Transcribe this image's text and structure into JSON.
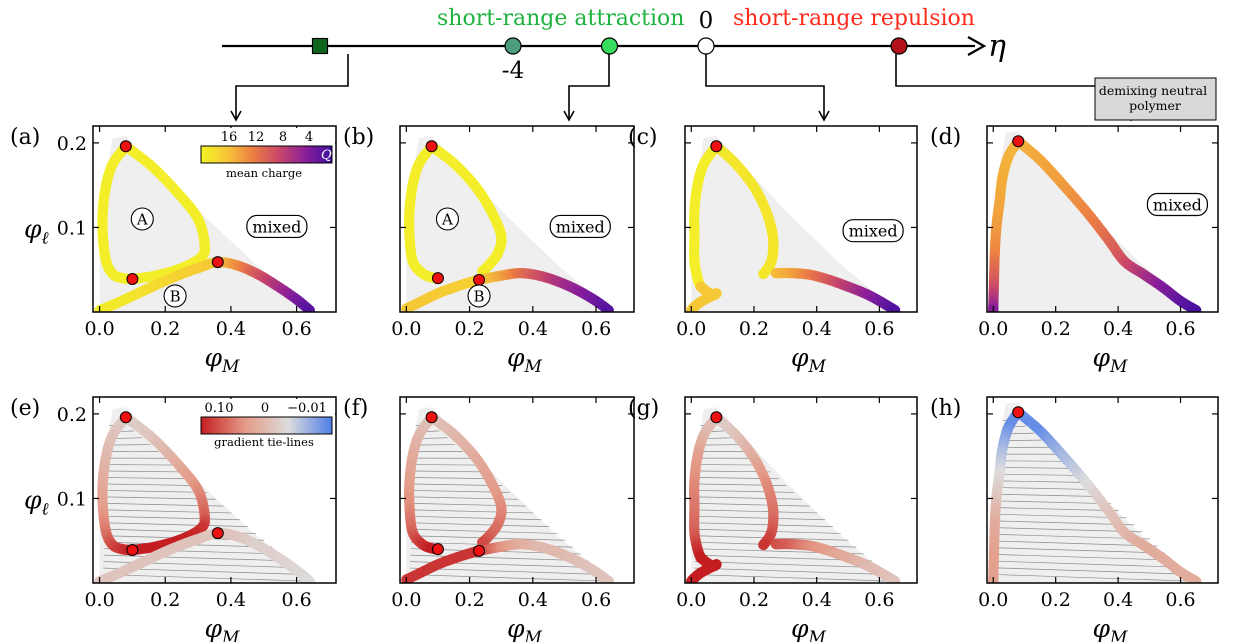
{
  "axis_arrow": {
    "symbol": "η",
    "attraction_label": "short-range attraction",
    "repulsion_label": "short-range repulsion",
    "attraction_color": "#1db33e",
    "repulsion_color": "#ff2a1a",
    "tick_minus4": "-4",
    "tick_zero": "0",
    "markers": [
      {
        "eta": -8,
        "shape": "square",
        "color": "#11661f"
      },
      {
        "eta": -4,
        "shape": "circle",
        "color": "#4b9e7c"
      },
      {
        "eta": -2,
        "shape": "circle",
        "color": "#35dc5e"
      },
      {
        "eta": 0,
        "shape": "circle",
        "color": "#ffffff"
      },
      {
        "eta": 4,
        "shape": "circle",
        "color": "#b3121b"
      }
    ]
  },
  "demixing_box": "demixing neutral\npolymer",
  "panel_letters": [
    "(a)",
    "(b)",
    "(c)",
    "(d)",
    "(e)",
    "(f)",
    "(g)",
    "(h)"
  ],
  "region_labels": {
    "A": "A",
    "B": "B",
    "mixed": "mixed"
  },
  "colorbar_charge": {
    "ticks": [
      "16",
      "12",
      "8",
      "4"
    ],
    "symbol": "Q",
    "label": "mean charge",
    "colors": [
      "#f2f526",
      "#f7c537",
      "#eb7d44",
      "#c8466a",
      "#8a1e9b",
      "#3c0fa0"
    ]
  },
  "colorbar_gradient": {
    "ticks": [
      "0.10",
      "0",
      "−0.01"
    ],
    "label": "gradient tie-lines",
    "colors": [
      "#c41e22",
      "#e49a86",
      "#dcdcdc",
      "#4f7ee8"
    ]
  },
  "chart_data": [
    {
      "panel": "a",
      "type": "scatter",
      "eta": -8,
      "coloring": "mean charge",
      "xlabel": "φ_M",
      "ylabel": "φ_ℓ",
      "xticks": [
        0.0,
        0.2,
        0.4,
        0.6
      ],
      "yticks": [
        0.1,
        0.2
      ],
      "xlim": [
        -0.02,
        0.72
      ],
      "ylim": [
        0.0,
        0.22
      ],
      "critical_points": [
        [
          0.08,
          0.196
        ],
        [
          0.1,
          0.039
        ],
        [
          0.36,
          0.059
        ]
      ],
      "branches": [
        {
          "x": [
            0.08,
            0.04,
            0.02,
            0.01,
            0.01,
            0.02,
            0.04,
            0.07,
            0.1
          ],
          "y": [
            0.196,
            0.175,
            0.15,
            0.12,
            0.09,
            0.06,
            0.045,
            0.04,
            0.039
          ],
          "Q": 16.5
        },
        {
          "x": [
            0.08,
            0.16,
            0.24,
            0.3,
            0.32,
            0.31,
            0.25,
            0.17,
            0.1
          ],
          "y": [
            0.196,
            0.172,
            0.14,
            0.11,
            0.08,
            0.065,
            0.052,
            0.043,
            0.039
          ],
          "Q": 16.5
        },
        {
          "x": [
            0.0,
            0.05,
            0.1,
            0.15,
            0.2,
            0.25,
            0.3,
            0.36,
            0.42,
            0.48,
            0.54,
            0.6,
            0.64
          ],
          "y": [
            0.002,
            0.01,
            0.019,
            0.028,
            0.037,
            0.045,
            0.052,
            0.059,
            0.055,
            0.045,
            0.031,
            0.015,
            0.002
          ],
          "Q": [
            16.5,
            16.2,
            16.0,
            15.5,
            15.0,
            14.6,
            14.3,
            14.0,
            11.5,
            8.5,
            6.0,
            3.5,
            2.0
          ]
        }
      ]
    },
    {
      "panel": "b",
      "type": "scatter",
      "eta": -4,
      "coloring": "mean charge",
      "xlabel": "φ_M",
      "xticks": [
        0.0,
        0.2,
        0.4,
        0.6
      ],
      "xlim": [
        -0.02,
        0.72
      ],
      "ylim": [
        0.0,
        0.22
      ],
      "critical_points": [
        [
          0.08,
          0.196
        ],
        [
          0.1,
          0.04
        ],
        [
          0.23,
          0.038
        ]
      ],
      "branches": [
        {
          "x": [
            0.08,
            0.04,
            0.02,
            0.01,
            0.01,
            0.02,
            0.05,
            0.08,
            0.1
          ],
          "y": [
            0.196,
            0.175,
            0.15,
            0.12,
            0.09,
            0.06,
            0.046,
            0.041,
            0.04
          ],
          "Q": 16.5
        },
        {
          "x": [
            0.08,
            0.15,
            0.22,
            0.27,
            0.3,
            0.29,
            0.26,
            0.24
          ],
          "y": [
            0.196,
            0.176,
            0.148,
            0.118,
            0.09,
            0.07,
            0.055,
            0.048
          ],
          "Q": 16.5
        },
        {
          "x": [
            0.0,
            0.05,
            0.1,
            0.15,
            0.2,
            0.23,
            0.3,
            0.36,
            0.42,
            0.48,
            0.54,
            0.6,
            0.64
          ],
          "y": [
            0.004,
            0.013,
            0.022,
            0.029,
            0.035,
            0.038,
            0.043,
            0.046,
            0.043,
            0.036,
            0.026,
            0.013,
            0.002
          ],
          "Q": [
            14.0,
            14.0,
            14.2,
            14.3,
            14.5,
            14.6,
            12.5,
            10.0,
            8.0,
            6.0,
            4.5,
            3.0,
            2.0
          ]
        }
      ]
    },
    {
      "panel": "c",
      "type": "scatter",
      "eta": -2,
      "coloring": "mean charge",
      "xlabel": "φ_M",
      "xticks": [
        0.0,
        0.2,
        0.4,
        0.6
      ],
      "xlim": [
        -0.02,
        0.72
      ],
      "ylim": [
        0.0,
        0.22
      ],
      "critical_points": [
        [
          0.08,
          0.196
        ]
      ],
      "branches": [
        {
          "x": [
            0.08,
            0.04,
            0.02,
            0.01,
            0.01,
            0.01,
            0.02,
            0.03
          ],
          "y": [
            0.196,
            0.175,
            0.15,
            0.12,
            0.09,
            0.06,
            0.04,
            0.03
          ],
          "Q": 16.5
        },
        {
          "x": [
            0.03,
            0.05,
            0.07,
            0.08,
            0.06,
            0.03,
            0.01,
            0.0
          ],
          "y": [
            0.03,
            0.024,
            0.02,
            0.022,
            0.018,
            0.012,
            0.006,
            0.002
          ],
          "Q": 14.0
        },
        {
          "x": [
            0.08,
            0.14,
            0.2,
            0.24,
            0.26,
            0.26,
            0.25,
            0.23
          ],
          "y": [
            0.196,
            0.176,
            0.148,
            0.118,
            0.09,
            0.068,
            0.055,
            0.045
          ],
          "Q": 16.0
        },
        {
          "x": [
            0.27,
            0.32,
            0.38,
            0.44,
            0.5,
            0.56,
            0.61,
            0.65
          ],
          "y": [
            0.046,
            0.046,
            0.044,
            0.038,
            0.03,
            0.021,
            0.011,
            0.002
          ],
          "Q": [
            13.5,
            12.5,
            10.5,
            8.5,
            6.5,
            4.5,
            3.0,
            1.8
          ]
        }
      ]
    },
    {
      "panel": "d",
      "type": "scatter",
      "eta": 4,
      "coloring": "mean charge",
      "xlabel": "φ_M",
      "xticks": [
        0.0,
        0.2,
        0.4,
        0.6
      ],
      "xlim": [
        -0.02,
        0.72
      ],
      "ylim": [
        0.0,
        0.22
      ],
      "critical_points": [
        [
          0.08,
          0.202
        ]
      ],
      "branches": [
        {
          "x": [
            0.08,
            0.05,
            0.03,
            0.02,
            0.01,
            0.005,
            0.002,
            0.0
          ],
          "y": [
            0.202,
            0.185,
            0.16,
            0.13,
            0.1,
            0.07,
            0.03,
            0.002
          ],
          "Q": [
            13.0,
            13.0,
            12.8,
            12.5,
            12.0,
            11.0,
            8.0,
            4.0
          ]
        },
        {
          "x": [
            0.08,
            0.15,
            0.22,
            0.3,
            0.37,
            0.42,
            0.48,
            0.54,
            0.6,
            0.65
          ],
          "y": [
            0.202,
            0.18,
            0.152,
            0.118,
            0.085,
            0.06,
            0.045,
            0.03,
            0.013,
            0.002
          ],
          "Q": [
            13.0,
            12.5,
            12.0,
            11.0,
            9.5,
            8.0,
            6.0,
            4.0,
            2.5,
            1.5
          ]
        }
      ]
    },
    {
      "panel": "e",
      "type": "scatter",
      "eta": -8,
      "coloring": "gradient tie-lines",
      "xlabel": "φ_M",
      "ylabel": "φ_ℓ",
      "xticks": [
        0.0,
        0.2,
        0.4,
        0.6
      ],
      "yticks": [
        0.1,
        0.2
      ],
      "xlim": [
        -0.02,
        0.72
      ],
      "ylim": [
        0.0,
        0.22
      ],
      "critical_points": [
        [
          0.08,
          0.196
        ],
        [
          0.1,
          0.039
        ],
        [
          0.36,
          0.059
        ]
      ],
      "branches": [
        {
          "x": [
            0.08,
            0.04,
            0.02,
            0.01,
            0.01,
            0.02,
            0.04,
            0.07,
            0.1
          ],
          "y": [
            0.196,
            0.175,
            0.15,
            0.12,
            0.09,
            0.06,
            0.045,
            0.04,
            0.039
          ],
          "G": [
            0.01,
            0.02,
            0.03,
            0.04,
            0.05,
            0.07,
            0.09,
            0.1,
            0.11
          ]
        },
        {
          "x": [
            0.08,
            0.16,
            0.24,
            0.3,
            0.32,
            0.31,
            0.25,
            0.17,
            0.1
          ],
          "y": [
            0.196,
            0.172,
            0.14,
            0.11,
            0.08,
            0.065,
            0.052,
            0.043,
            0.039
          ],
          "G": [
            0.01,
            0.02,
            0.04,
            0.06,
            0.08,
            0.1,
            0.11,
            0.11,
            0.11
          ]
        },
        {
          "x": [
            0.0,
            0.05,
            0.1,
            0.15,
            0.2,
            0.25,
            0.3,
            0.36,
            0.42,
            0.48,
            0.54,
            0.6,
            0.64
          ],
          "y": [
            0.002,
            0.01,
            0.019,
            0.028,
            0.037,
            0.045,
            0.052,
            0.059,
            0.055,
            0.045,
            0.031,
            0.015,
            0.002
          ],
          "G": [
            0.02,
            0.02,
            0.02,
            0.02,
            0.02,
            0.02,
            0.02,
            0.02,
            0.02,
            0.01,
            0.01,
            0.005,
            0.0
          ]
        }
      ]
    },
    {
      "panel": "f",
      "type": "scatter",
      "eta": -4,
      "coloring": "gradient tie-lines",
      "xlabel": "φ_M",
      "xticks": [
        0.0,
        0.2,
        0.4,
        0.6
      ],
      "xlim": [
        -0.02,
        0.72
      ],
      "ylim": [
        0.0,
        0.22
      ],
      "critical_points": [
        [
          0.08,
          0.196
        ],
        [
          0.1,
          0.04
        ],
        [
          0.23,
          0.038
        ]
      ],
      "branches": [
        {
          "x": [
            0.08,
            0.04,
            0.02,
            0.01,
            0.01,
            0.02,
            0.05,
            0.08,
            0.1
          ],
          "y": [
            0.196,
            0.175,
            0.15,
            0.12,
            0.09,
            0.06,
            0.046,
            0.041,
            0.04
          ],
          "G": [
            0.02,
            0.03,
            0.04,
            0.05,
            0.06,
            0.08,
            0.1,
            0.11,
            0.11
          ]
        },
        {
          "x": [
            0.08,
            0.15,
            0.22,
            0.27,
            0.3,
            0.29,
            0.26,
            0.24
          ],
          "y": [
            0.196,
            0.176,
            0.148,
            0.118,
            0.09,
            0.07,
            0.055,
            0.048
          ],
          "G": [
            0.02,
            0.03,
            0.04,
            0.05,
            0.06,
            0.07,
            0.08,
            0.09
          ]
        },
        {
          "x": [
            0.0,
            0.05,
            0.1,
            0.15,
            0.2,
            0.23,
            0.3,
            0.36,
            0.42,
            0.48,
            0.54,
            0.6,
            0.64
          ],
          "y": [
            0.004,
            0.013,
            0.022,
            0.029,
            0.035,
            0.038,
            0.043,
            0.046,
            0.043,
            0.036,
            0.026,
            0.013,
            0.002
          ],
          "G": [
            0.1,
            0.1,
            0.1,
            0.1,
            0.1,
            0.1,
            0.06,
            0.04,
            0.03,
            0.03,
            0.025,
            0.02,
            0.02
          ]
        }
      ]
    },
    {
      "panel": "g",
      "type": "scatter",
      "eta": -2,
      "coloring": "gradient tie-lines",
      "xlabel": "φ_M",
      "xticks": [
        0.0,
        0.2,
        0.4,
        0.6
      ],
      "xlim": [
        -0.02,
        0.72
      ],
      "ylim": [
        0.0,
        0.22
      ],
      "critical_points": [
        [
          0.08,
          0.196
        ]
      ],
      "branches": [
        {
          "x": [
            0.08,
            0.04,
            0.02,
            0.01,
            0.01,
            0.01,
            0.02,
            0.03
          ],
          "y": [
            0.196,
            0.175,
            0.15,
            0.12,
            0.09,
            0.06,
            0.04,
            0.03
          ],
          "G": [
            0.02,
            0.03,
            0.05,
            0.06,
            0.07,
            0.08,
            0.1,
            0.11
          ]
        },
        {
          "x": [
            0.03,
            0.05,
            0.07,
            0.08,
            0.06,
            0.03,
            0.01,
            0.0
          ],
          "y": [
            0.03,
            0.024,
            0.02,
            0.022,
            0.018,
            0.012,
            0.006,
            0.002
          ],
          "G": 0.11
        },
        {
          "x": [
            0.08,
            0.14,
            0.2,
            0.24,
            0.26,
            0.26,
            0.25,
            0.23
          ],
          "y": [
            0.196,
            0.176,
            0.148,
            0.118,
            0.09,
            0.068,
            0.055,
            0.045
          ],
          "G": [
            0.01,
            0.02,
            0.04,
            0.06,
            0.07,
            0.08,
            0.09,
            0.1
          ]
        },
        {
          "x": [
            0.27,
            0.32,
            0.38,
            0.44,
            0.5,
            0.56,
            0.61,
            0.65
          ],
          "y": [
            0.046,
            0.046,
            0.044,
            0.038,
            0.03,
            0.021,
            0.011,
            0.002
          ],
          "G": [
            0.09,
            0.08,
            0.06,
            0.05,
            0.04,
            0.03,
            0.025,
            0.02
          ]
        }
      ]
    },
    {
      "panel": "h",
      "type": "scatter",
      "eta": 4,
      "coloring": "gradient tie-lines",
      "xlabel": "φ_M",
      "xticks": [
        0.0,
        0.2,
        0.4,
        0.6
      ],
      "xlim": [
        -0.02,
        0.72
      ],
      "ylim": [
        0.0,
        0.22
      ],
      "critical_points": [
        [
          0.08,
          0.202
        ]
      ],
      "branches": [
        {
          "x": [
            0.08,
            0.05,
            0.03,
            0.02,
            0.01,
            0.005,
            0.002,
            0.0
          ],
          "y": [
            0.202,
            0.185,
            0.16,
            0.13,
            0.1,
            0.07,
            0.03,
            0.002
          ],
          "G": [
            -0.01,
            -0.01,
            -0.005,
            0.0,
            0.02,
            0.04,
            0.05,
            0.05
          ]
        },
        {
          "x": [
            0.08,
            0.15,
            0.22,
            0.3,
            0.37,
            0.42,
            0.48,
            0.54,
            0.6,
            0.65
          ],
          "y": [
            0.202,
            0.18,
            0.152,
            0.118,
            0.085,
            0.06,
            0.045,
            0.03,
            0.013,
            0.002
          ],
          "G": [
            -0.01,
            -0.01,
            -0.005,
            0.0,
            0.02,
            0.03,
            0.04,
            0.04,
            0.04,
            0.04
          ]
        }
      ]
    }
  ]
}
